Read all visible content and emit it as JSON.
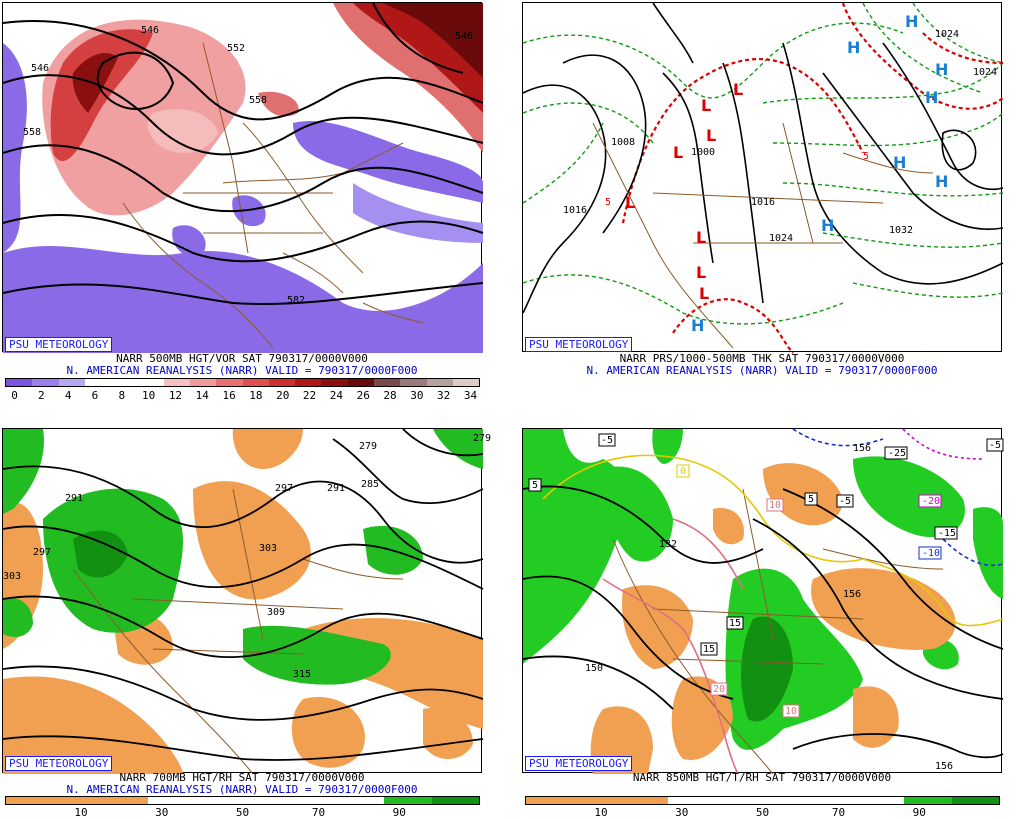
{
  "panels": [
    {
      "badge": "PSU METEOROLOGY",
      "caption1": "NARR 500MB HGT/VOR SAT 790317/0000V000",
      "caption2": "N. AMERICAN REANALYSIS (NARR) VALID = 790317/0000F000",
      "legend_labels": [
        "0",
        "2",
        "4",
        "6",
        "8",
        "10",
        "12",
        "14",
        "16",
        "18",
        "20",
        "22",
        "24",
        "26",
        "28",
        "30",
        "32",
        "34"
      ],
      "legend_colors": [
        "#7a55e0",
        "#9a80ea",
        "#b8a8f0",
        "#ffffff",
        "#ffffff",
        "#ffffff",
        "#f7c0c0",
        "#f09a9a",
        "#e87070",
        "#e05050",
        "#cc3030",
        "#b01818",
        "#8a1010",
        "#6a0a0a",
        "#7a4a4a",
        "#9a7a7a",
        "#b8a0a0",
        "#e0c8c8"
      ],
      "contour_labels": [
        "546",
        "558",
        "546",
        "552",
        "558",
        "546",
        "582"
      ]
    },
    {
      "badge": "PSU METEOROLOGY",
      "caption1": "NARR PRS/1000-500MB THK SAT 790317/0000V000",
      "caption2": "N. AMERICAN REANALYSIS (NARR) VALID = 790317/0000F000",
      "contour_labels": [
        "1008",
        "1000",
        "1016",
        "1016",
        "1024",
        "1032",
        "1024",
        "1024"
      ],
      "thickness_labels": [
        "5",
        "5"
      ],
      "low_symbol": "L",
      "high_symbol": "H"
    },
    {
      "badge": "PSU METEOROLOGY",
      "caption1": "NARR 700MB HGT/RH SAT 790317/0000V000",
      "caption2": "N. AMERICAN REANALYSIS (NARR) VALID = 790317/0000F000",
      "legend_labels": [
        "10",
        "30",
        "50",
        "70",
        "90"
      ],
      "contour_labels": [
        "279",
        "291",
        "297",
        "291",
        "285",
        "297",
        "303",
        "309",
        "315",
        "303",
        "279"
      ]
    },
    {
      "badge": "PSU METEOROLOGY",
      "caption1": "NARR 850MB HGT/T/RH SAT 790317/0000V000",
      "legend_labels": [
        "10",
        "30",
        "50",
        "70",
        "90"
      ],
      "contour_labels": [
        "132",
        "150",
        "156",
        "156",
        "156"
      ],
      "temp_labels": [
        "-5",
        "5",
        "0",
        "10",
        "5",
        "-5",
        "-25",
        "-20",
        "-15",
        "-10",
        "15",
        "15",
        "20",
        "10",
        "-5"
      ]
    }
  ],
  "colors": {
    "brand_blue": "#1a1aff",
    "caption_blue": "#0000cc",
    "rh_moist": "#22bb22",
    "rh_dry": "#f0a050",
    "low_red": "#dd0000",
    "high_blue": "#1a7fd0",
    "border_brown": "#8b5a2b"
  }
}
